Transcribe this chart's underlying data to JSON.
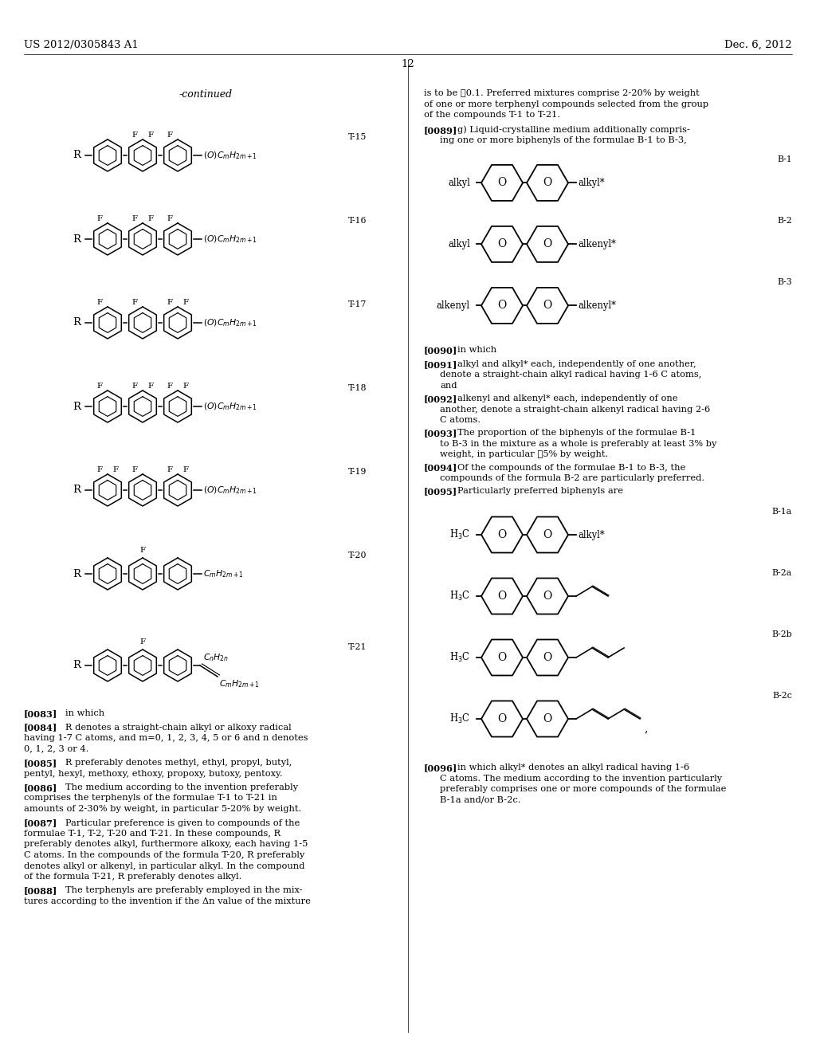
{
  "bg_color": "#ffffff",
  "header_left": "US 2012/0305843 A1",
  "header_right": "Dec. 6, 2012",
  "page_number": "12"
}
